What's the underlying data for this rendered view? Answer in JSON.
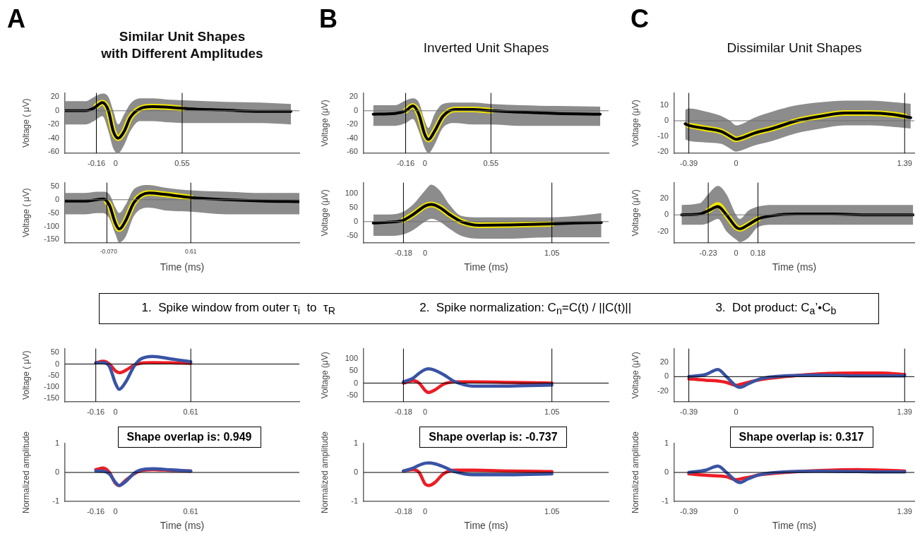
{
  "chart_data": [
    {
      "type": "line",
      "title": "Similar Unit Shapes\nwith Different Amplitudes",
      "annotations": [
        "A"
      ],
      "ylabel": "Voltage ( μV)",
      "xlim": [
        -0.42,
        1.52
      ],
      "xticks": [
        -0.16,
        0,
        0.55
      ],
      "ylim": [
        -62,
        26
      ],
      "yticks": [
        -60,
        -40,
        -20,
        0,
        20
      ],
      "ref_lines": [
        {
          "axis": "y",
          "value": 0,
          "color": "#707070"
        },
        {
          "axis": "x",
          "value": -0.16,
          "color": "#000000"
        },
        {
          "axis": "x",
          "value": 0.55,
          "color": "#000000"
        }
      ],
      "series": [
        {
          "color": "#f2e600",
          "x": [
            -0.16,
            -0.11,
            -0.06,
            -0.02,
            0.02,
            0.07,
            0.12,
            0.2,
            0.3,
            0.45,
            0.55
          ],
          "values": [
            7,
            12,
            0,
            -30,
            -40,
            -30,
            -10,
            3,
            6,
            5,
            3
          ]
        },
        {
          "color": "#000000",
          "x": [
            -0.42,
            -0.25,
            -0.18,
            -0.11,
            -0.06,
            -0.02,
            0.02,
            0.07,
            0.12,
            0.2,
            0.3,
            0.45,
            0.6,
            0.9,
            1.2,
            1.45
          ],
          "values": [
            0,
            0,
            4,
            12,
            0,
            -30,
            -40,
            -30,
            -10,
            3,
            6,
            5,
            3,
            1,
            -1,
            -1
          ],
          "lower": [
            -20,
            -20,
            -15,
            -8,
            -30,
            -55,
            -62,
            -50,
            -30,
            -15,
            -15,
            -17,
            -18,
            -18,
            -18,
            -20
          ],
          "upper": [
            14,
            14,
            20,
            25,
            20,
            0,
            -20,
            -5,
            10,
            18,
            18,
            16,
            15,
            13,
            12,
            10
          ]
        }
      ]
    },
    {
      "type": "line",
      "title": "Inverted Unit Shapes",
      "annotations": [
        "B"
      ],
      "ylabel": "Voltage (μV)",
      "xlim": [
        -0.51,
        1.53
      ],
      "xticks": [
        -0.16,
        0,
        0.55
      ],
      "ylim": [
        -62,
        26
      ],
      "yticks": [
        -60,
        -40,
        -20,
        0,
        20
      ],
      "ref_lines": [
        {
          "axis": "y",
          "value": 0,
          "color": "#707070"
        },
        {
          "axis": "x",
          "value": -0.16,
          "color": "#000000"
        },
        {
          "axis": "x",
          "value": 0.55,
          "color": "#000000"
        }
      ],
      "series": [
        {
          "color": "#f2e600",
          "x": [
            -0.16,
            -0.1,
            -0.05,
            0,
            0.03,
            0.08,
            0.15,
            0.25,
            0.4,
            0.55
          ],
          "values": [
            0,
            7,
            -5,
            -35,
            -42,
            -30,
            -8,
            2,
            2,
            0
          ]
        },
        {
          "color": "#000000",
          "x": [
            -0.43,
            -0.25,
            -0.16,
            -0.1,
            -0.05,
            0,
            0.03,
            0.08,
            0.15,
            0.25,
            0.4,
            0.55,
            0.8,
            1.1,
            1.46
          ],
          "values": [
            -5,
            -4,
            0,
            7,
            -5,
            -35,
            -42,
            -30,
            -8,
            2,
            2,
            0,
            -2,
            -4,
            -5
          ],
          "lower": [
            -22,
            -22,
            -18,
            -12,
            -30,
            -55,
            -62,
            -50,
            -25,
            -18,
            -20,
            -20,
            -22,
            -22,
            -22
          ],
          "upper": [
            8,
            8,
            15,
            18,
            12,
            -15,
            -25,
            -5,
            10,
            12,
            12,
            10,
            8,
            7,
            6
          ]
        }
      ]
    },
    {
      "type": "line",
      "title": "Dissimilar Unit Shapes",
      "annotations": [
        "C"
      ],
      "ylabel": "Voltage (μV)",
      "xlim": [
        -0.51,
        1.47
      ],
      "xticks": [
        -0.39,
        0,
        1.39
      ],
      "ylim": [
        -21,
        18
      ],
      "yticks": [
        -20,
        -10,
        0,
        10
      ],
      "ref_lines": [
        {
          "axis": "y",
          "value": 0,
          "color": "#707070"
        },
        {
          "axis": "x",
          "value": -0.39,
          "color": "#000000"
        },
        {
          "axis": "x",
          "value": 1.39,
          "color": "#000000"
        }
      ],
      "series": [
        {
          "color": "#f2e600",
          "x": [
            -0.39,
            -0.25,
            -0.12,
            -0.05,
            0,
            0.05,
            0.15,
            0.3,
            0.5,
            0.7,
            0.9,
            1.1,
            1.3,
            1.39
          ],
          "values": [
            -3,
            -5,
            -7,
            -10,
            -12,
            -11,
            -8,
            -5,
            0,
            3,
            5,
            5,
            4,
            3
          ]
        },
        {
          "color": "#000000",
          "x": [
            -0.42,
            -0.39,
            -0.25,
            -0.12,
            -0.05,
            0,
            0.05,
            0.15,
            0.3,
            0.5,
            0.7,
            0.9,
            1.1,
            1.3,
            1.44
          ],
          "values": [
            -2,
            -3,
            -5,
            -7,
            -10,
            -12,
            -11,
            -8,
            -5,
            0,
            3,
            5,
            5,
            4,
            2
          ],
          "lower": [
            -12,
            -13,
            -14,
            -15,
            -18,
            -20,
            -19,
            -16,
            -13,
            -8,
            -5,
            -3,
            -3,
            -4,
            -5
          ],
          "upper": [
            7,
            8,
            6,
            3,
            0,
            -3,
            -2,
            2,
            6,
            10,
            12,
            13,
            13,
            12,
            11
          ]
        }
      ]
    },
    {
      "type": "line",
      "xlabel": "Time (ms)",
      "ylabel": "Voltage ( μV)",
      "xlim": [
        -0.41,
        1.49
      ],
      "xticks": [
        -0.07,
        0,
        0.61
      ],
      "ylim": [
        -162,
        64
      ],
      "yticks": [
        -150,
        -100,
        -50,
        0,
        50
      ],
      "ref_lines": [
        {
          "axis": "y",
          "value": 0,
          "color": "#707070"
        },
        {
          "axis": "x",
          "value": -0.07,
          "color": "#000000"
        },
        {
          "axis": "x",
          "value": 0.61,
          "color": "#000000"
        }
      ],
      "series": [
        {
          "color": "#f2e600",
          "x": [
            -0.07,
            -0.05,
            0,
            0.03,
            0.08,
            0.15,
            0.27,
            0.4,
            0.61
          ],
          "values": [
            -8,
            -20,
            -90,
            -110,
            -80,
            -10,
            25,
            20,
            8
          ]
        },
        {
          "color": "#000000",
          "x": [
            -0.41,
            -0.25,
            -0.15,
            -0.1,
            -0.05,
            0,
            0.03,
            0.08,
            0.15,
            0.27,
            0.4,
            0.61,
            0.9,
            1.2,
            1.49
          ],
          "values": [
            -5,
            -5,
            0,
            3,
            -20,
            -90,
            -110,
            -80,
            -10,
            25,
            20,
            8,
            0,
            -5,
            -7
          ],
          "lower": [
            -55,
            -55,
            -50,
            -50,
            -70,
            -130,
            -160,
            -140,
            -60,
            -30,
            -40,
            -45,
            -55,
            -55,
            -55
          ],
          "upper": [
            25,
            25,
            30,
            30,
            20,
            -30,
            -50,
            -20,
            40,
            55,
            45,
            35,
            30,
            25,
            25
          ]
        }
      ]
    },
    {
      "type": "line",
      "xlabel": "Time (ms)",
      "ylabel": "Voltage (μV)",
      "xlim": [
        -0.51,
        1.52
      ],
      "xticks": [
        -0.18,
        0,
        1.05
      ],
      "ylim": [
        -75,
        137
      ],
      "yticks": [
        -50,
        0,
        50,
        100
      ],
      "ref_lines": [
        {
          "axis": "y",
          "value": 0,
          "color": "#707070"
        },
        {
          "axis": "x",
          "value": -0.18,
          "color": "#000000"
        },
        {
          "axis": "x",
          "value": 1.05,
          "color": "#000000"
        }
      ],
      "series": [
        {
          "color": "#f2e600",
          "x": [
            -0.18,
            -0.1,
            0,
            0.05,
            0.12,
            0.2,
            0.3,
            0.45,
            0.7,
            1.05
          ],
          "values": [
            5,
            25,
            55,
            60,
            50,
            25,
            0,
            -13,
            -12,
            -8
          ]
        },
        {
          "color": "#000000",
          "x": [
            -0.43,
            -0.3,
            -0.18,
            -0.1,
            0,
            0.05,
            0.12,
            0.2,
            0.3,
            0.45,
            0.7,
            1.05,
            1.25,
            1.46
          ],
          "values": [
            -5,
            -2,
            5,
            25,
            55,
            60,
            50,
            25,
            0,
            -13,
            -12,
            -8,
            -5,
            -3
          ],
          "lower": [
            -50,
            -50,
            -45,
            -30,
            0,
            10,
            0,
            -25,
            -50,
            -60,
            -60,
            -55,
            -55,
            -55
          ],
          "upper": [
            25,
            25,
            35,
            60,
            110,
            130,
            110,
            60,
            20,
            15,
            15,
            15,
            20,
            30
          ]
        }
      ]
    },
    {
      "type": "line",
      "xlabel": "Time (ms)",
      "ylabel": "Voltage (μV)",
      "xlim": [
        -0.51,
        1.47
      ],
      "xticks": [
        -0.23,
        0,
        0.18
      ],
      "ylim": [
        -34,
        39
      ],
      "yticks": [
        -20,
        0,
        20
      ],
      "ref_lines": [
        {
          "axis": "y",
          "value": 0,
          "color": "#707070"
        },
        {
          "axis": "x",
          "value": -0.23,
          "color": "#000000"
        },
        {
          "axis": "x",
          "value": 0.18,
          "color": "#000000"
        }
      ],
      "series": [
        {
          "color": "#f2e600",
          "x": [
            -0.23,
            -0.15,
            -0.08,
            0,
            0.03,
            0.1,
            0.18
          ],
          "values": [
            5,
            12,
            0,
            -15,
            -17,
            -12,
            -5
          ]
        },
        {
          "color": "#000000",
          "x": [
            -0.45,
            -0.3,
            -0.23,
            -0.15,
            -0.08,
            0,
            0.03,
            0.1,
            0.18,
            0.3,
            0.5,
            0.8,
            1.1,
            1.46
          ],
          "values": [
            0,
            1,
            5,
            10,
            0,
            -15,
            -17,
            -12,
            -5,
            -1,
            1,
            1,
            0,
            0
          ],
          "lower": [
            -12,
            -12,
            -10,
            -5,
            -20,
            -30,
            -33,
            -28,
            -15,
            -12,
            -12,
            -12,
            -12,
            -12
          ],
          "upper": [
            12,
            14,
            25,
            35,
            25,
            0,
            -5,
            5,
            10,
            12,
            12,
            12,
            12,
            12
          ]
        }
      ]
    },
    {
      "type": "other",
      "annotations": [
        "1.  Spike window from outer τ$_{i}$  to  τ$_{R}$",
        "2.  Spike normalization: C$_{n}$=C(t) / ||C(t)||",
        "3.  Dot product: C$_{a}$’•C$_{b}$"
      ]
    },
    {
      "type": "line",
      "ylabel": "Voltage ( μV)",
      "xlim": [
        -0.41,
        1.49
      ],
      "xticks": [
        -0.16,
        0,
        0.61
      ],
      "ylim": [
        -164,
        67
      ],
      "yticks": [
        -150,
        -100,
        -50,
        0,
        50
      ],
      "ref_lines": [
        {
          "axis": "y",
          "value": 0,
          "color": "#000000"
        },
        {
          "axis": "x",
          "value": -0.16,
          "color": "#000000"
        },
        {
          "axis": "x",
          "value": 0.61,
          "color": "#000000"
        }
      ],
      "series": [
        {
          "color": "#ed1c24",
          "x": [
            -0.16,
            -0.1,
            -0.05,
            0,
            0.03,
            0.08,
            0.15,
            0.2,
            0.3,
            0.45,
            0.61
          ],
          "values": [
            5,
            12,
            0,
            -30,
            -38,
            -28,
            -5,
            3,
            6,
            5,
            3
          ]
        },
        {
          "color": "#3953a4",
          "x": [
            -0.16,
            -0.1,
            -0.05,
            0,
            0.03,
            0.08,
            0.15,
            0.2,
            0.3,
            0.45,
            0.61
          ],
          "values": [
            5,
            5,
            -10,
            -85,
            -110,
            -80,
            -10,
            20,
            33,
            22,
            10
          ]
        }
      ]
    },
    {
      "type": "line",
      "ylabel": "Voltage (μV)",
      "xlim": [
        -0.51,
        1.52
      ],
      "xticks": [
        -0.18,
        0,
        1.05
      ],
      "ylim": [
        -76,
        140
      ],
      "yticks": [
        -50,
        0,
        50,
        100
      ],
      "ref_lines": [
        {
          "axis": "y",
          "value": 0,
          "color": "#000000"
        },
        {
          "axis": "x",
          "value": -0.18,
          "color": "#000000"
        },
        {
          "axis": "x",
          "value": 1.05,
          "color": "#000000"
        }
      ],
      "series": [
        {
          "color": "#ed1c24",
          "x": [
            -0.18,
            -0.1,
            -0.05,
            0,
            0.03,
            0.08,
            0.15,
            0.25,
            0.4,
            0.7,
            1.05
          ],
          "values": [
            0,
            10,
            0,
            -30,
            -38,
            -28,
            -5,
            5,
            5,
            3,
            0
          ]
        },
        {
          "color": "#3953a4",
          "x": [
            -0.18,
            -0.1,
            -0.05,
            0,
            0.03,
            0.08,
            0.15,
            0.25,
            0.4,
            0.7,
            1.05
          ],
          "values": [
            5,
            20,
            40,
            55,
            58,
            52,
            35,
            5,
            -12,
            -12,
            -8
          ]
        }
      ]
    },
    {
      "type": "line",
      "ylabel": "Voltage (μV)",
      "xlim": [
        -0.51,
        1.47
      ],
      "xticks": [
        -0.39,
        0,
        1.39
      ],
      "ylim": [
        -35,
        39
      ],
      "yticks": [
        -20,
        0,
        20
      ],
      "ref_lines": [
        {
          "axis": "y",
          "value": 0,
          "color": "#000000"
        },
        {
          "axis": "x",
          "value": -0.39,
          "color": "#000000"
        },
        {
          "axis": "x",
          "value": 1.39,
          "color": "#000000"
        }
      ],
      "series": [
        {
          "color": "#ed1c24",
          "x": [
            -0.39,
            -0.25,
            -0.15,
            -0.08,
            0,
            0.03,
            0.1,
            0.2,
            0.4,
            0.7,
            1.0,
            1.2,
            1.39
          ],
          "values": [
            -3,
            -5,
            -6,
            -8,
            -12,
            -11,
            -8,
            -4,
            0,
            4,
            5,
            5,
            3
          ]
        },
        {
          "color": "#3953a4",
          "x": [
            -0.39,
            -0.25,
            -0.15,
            -0.08,
            0,
            0.03,
            0.1,
            0.2,
            0.4,
            0.7,
            1.0,
            1.2,
            1.39
          ],
          "values": [
            0,
            3,
            10,
            0,
            -13,
            -15,
            -10,
            -3,
            1,
            2,
            1,
            1,
            1
          ]
        }
      ]
    },
    {
      "type": "line",
      "annotations": [
        "Shape overlap is: 0.949"
      ],
      "xlabel": "Time (ms)",
      "ylabel": "Normalized amplitude",
      "xlim": [
        -0.41,
        1.49
      ],
      "xticks": [
        -0.16,
        0,
        0.61
      ],
      "ylim": [
        -1,
        1
      ],
      "yticks": [
        -1,
        0,
        1
      ],
      "ref_lines": [
        {
          "axis": "y",
          "value": 0,
          "color": "#000000"
        }
      ],
      "series": [
        {
          "color": "#ed1c24",
          "x": [
            -0.16,
            -0.1,
            -0.05,
            0,
            0.03,
            0.08,
            0.15,
            0.2,
            0.3,
            0.45,
            0.61
          ],
          "values": [
            0.1,
            0.15,
            0,
            -0.38,
            -0.45,
            -0.28,
            -0.05,
            0.05,
            0.1,
            0.07,
            0.05
          ]
        },
        {
          "color": "#3953a4",
          "x": [
            -0.16,
            -0.1,
            -0.05,
            0,
            0.03,
            0.08,
            0.15,
            0.2,
            0.3,
            0.45,
            0.61
          ],
          "values": [
            0.05,
            0.04,
            -0.05,
            -0.35,
            -0.45,
            -0.32,
            -0.03,
            0.08,
            0.13,
            0.09,
            0.05
          ]
        }
      ]
    },
    {
      "type": "line",
      "annotations": [
        "Shape overlap is: -0.737"
      ],
      "xlabel": "Time (ms)",
      "ylabel": "Normalized amplitude",
      "xlim": [
        -0.51,
        1.52
      ],
      "xticks": [
        -0.18,
        0,
        1.05
      ],
      "ylim": [
        -1,
        1
      ],
      "yticks": [
        -1,
        0,
        1
      ],
      "ref_lines": [
        {
          "axis": "y",
          "value": 0,
          "color": "#000000"
        }
      ],
      "series": [
        {
          "color": "#ed1c24",
          "x": [
            -0.18,
            -0.1,
            -0.05,
            0,
            0.03,
            0.08,
            0.15,
            0.25,
            0.4,
            0.7,
            1.05
          ],
          "values": [
            0.05,
            0.1,
            0,
            -0.4,
            -0.45,
            -0.35,
            -0.05,
            0.08,
            0.08,
            0.05,
            0.03
          ]
        },
        {
          "color": "#3953a4",
          "x": [
            -0.18,
            -0.1,
            -0.05,
            0,
            0.03,
            0.08,
            0.15,
            0.25,
            0.4,
            0.7,
            1.05
          ],
          "values": [
            0.05,
            0.15,
            0.25,
            0.32,
            0.33,
            0.3,
            0.2,
            0.02,
            -0.08,
            -0.08,
            -0.05
          ]
        }
      ]
    },
    {
      "type": "line",
      "annotations": [
        "Shape overlap is: 0.317"
      ],
      "xlabel": "Time (ms)",
      "ylabel": "Normalized amplitude",
      "xlim": [
        -0.51,
        1.47
      ],
      "xticks": [
        -0.39,
        0,
        1.39
      ],
      "ylim": [
        -1,
        1
      ],
      "yticks": [
        -1,
        0,
        1
      ],
      "ref_lines": [
        {
          "axis": "y",
          "value": 0,
          "color": "#000000"
        }
      ],
      "series": [
        {
          "color": "#ed1c24",
          "x": [
            -0.39,
            -0.25,
            -0.15,
            -0.08,
            0,
            0.03,
            0.1,
            0.2,
            0.4,
            0.7,
            1.0,
            1.2,
            1.39
          ],
          "values": [
            -0.05,
            -0.1,
            -0.12,
            -0.15,
            -0.25,
            -0.23,
            -0.17,
            -0.08,
            0,
            0.07,
            0.1,
            0.08,
            0.05
          ]
        },
        {
          "color": "#3953a4",
          "x": [
            -0.39,
            -0.25,
            -0.15,
            -0.08,
            0,
            0.03,
            0.1,
            0.2,
            0.4,
            0.7,
            1.0,
            1.2,
            1.39
          ],
          "values": [
            0,
            0.08,
            0.22,
            0,
            -0.3,
            -0.35,
            -0.22,
            -0.07,
            0.02,
            0.04,
            0.03,
            0.02,
            0.02
          ]
        }
      ]
    }
  ]
}
